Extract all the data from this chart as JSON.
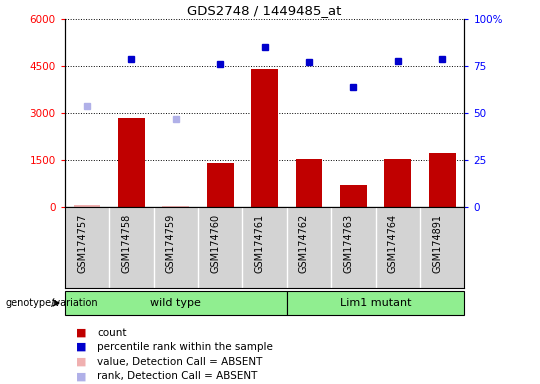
{
  "title": "GDS2748 / 1449485_at",
  "samples": [
    "GSM174757",
    "GSM174758",
    "GSM174759",
    "GSM174760",
    "GSM174761",
    "GSM174762",
    "GSM174763",
    "GSM174764",
    "GSM174891"
  ],
  "count_values": [
    80,
    2850,
    30,
    1420,
    4400,
    1530,
    700,
    1540,
    1720
  ],
  "count_absent": [
    true,
    false,
    true,
    false,
    false,
    false,
    false,
    false,
    false
  ],
  "rank_values": [
    54,
    79,
    47,
    76,
    85,
    77,
    64,
    78,
    79
  ],
  "rank_absent": [
    true,
    false,
    true,
    false,
    false,
    false,
    false,
    false,
    false
  ],
  "left_ylim": [
    0,
    6000
  ],
  "left_yticks": [
    0,
    1500,
    3000,
    4500,
    6000
  ],
  "right_ylim": [
    0,
    100
  ],
  "right_yticks": [
    0,
    25,
    50,
    75,
    100
  ],
  "right_yticklabels": [
    "0",
    "25",
    "50",
    "75",
    "100%"
  ],
  "group1_label": "wild type",
  "group1_indices": [
    0,
    1,
    2,
    3,
    4
  ],
  "group2_label": "Lim1 mutant",
  "group2_indices": [
    5,
    6,
    7,
    8
  ],
  "genotype_label": "genotype/variation",
  "bar_color_present": "#c00000",
  "bar_color_absent": "#f0b0b0",
  "rank_color_present": "#0000cc",
  "rank_color_absent": "#b0b0e8",
  "group_color": "#90ee90",
  "bg_color": "#d3d3d3",
  "legend_items": [
    {
      "label": "count",
      "color": "#c00000"
    },
    {
      "label": "percentile rank within the sample",
      "color": "#0000cc"
    },
    {
      "label": "value, Detection Call = ABSENT",
      "color": "#f0b0b0"
    },
    {
      "label": "rank, Detection Call = ABSENT",
      "color": "#b0b0e8"
    }
  ]
}
